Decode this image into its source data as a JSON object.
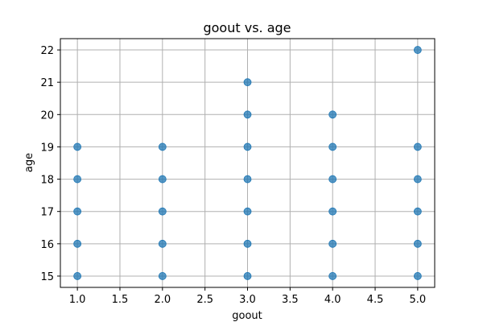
{
  "chart_data": {
    "type": "scatter",
    "title": "goout vs. age",
    "xlabel": "goout",
    "ylabel": "age",
    "xlim": [
      0.8,
      5.2
    ],
    "ylim": [
      14.65,
      22.35
    ],
    "xticks": [
      1.0,
      1.5,
      2.0,
      2.5,
      3.0,
      3.5,
      4.0,
      4.5,
      5.0
    ],
    "xtick_labels": [
      "1.0",
      "1.5",
      "2.0",
      "2.5",
      "3.0",
      "3.5",
      "4.0",
      "4.5",
      "5.0"
    ],
    "yticks": [
      15,
      16,
      17,
      18,
      19,
      20,
      21,
      22
    ],
    "ytick_labels": [
      "15",
      "16",
      "17",
      "18",
      "19",
      "20",
      "21",
      "22"
    ],
    "grid": true,
    "point_color": "#1f77b4",
    "points": [
      [
        1,
        15
      ],
      [
        1,
        16
      ],
      [
        1,
        17
      ],
      [
        1,
        18
      ],
      [
        1,
        19
      ],
      [
        2,
        15
      ],
      [
        2,
        16
      ],
      [
        2,
        17
      ],
      [
        2,
        18
      ],
      [
        2,
        19
      ],
      [
        3,
        15
      ],
      [
        3,
        16
      ],
      [
        3,
        17
      ],
      [
        3,
        18
      ],
      [
        3,
        19
      ],
      [
        3,
        20
      ],
      [
        3,
        21
      ],
      [
        4,
        15
      ],
      [
        4,
        16
      ],
      [
        4,
        17
      ],
      [
        4,
        18
      ],
      [
        4,
        19
      ],
      [
        4,
        20
      ],
      [
        5,
        15
      ],
      [
        5,
        16
      ],
      [
        5,
        17
      ],
      [
        5,
        18
      ],
      [
        5,
        19
      ],
      [
        5,
        22
      ]
    ]
  }
}
